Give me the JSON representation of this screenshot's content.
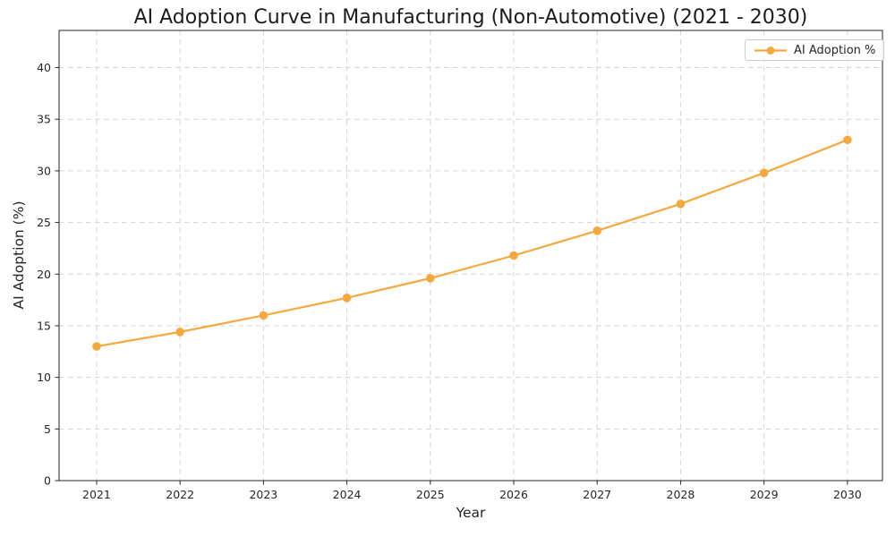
{
  "figure": {
    "background": "#ffffff"
  },
  "chart_data": {
    "type": "line",
    "title": "AI Adoption Curve in Manufacturing (Non-Automotive) (2021 - 2030)",
    "xlabel": "Year",
    "ylabel": "AI Adoption (%)",
    "categories": [
      2021,
      2022,
      2023,
      2024,
      2025,
      2026,
      2027,
      2028,
      2029,
      2030
    ],
    "series": [
      {
        "name": "AI Adoption %",
        "values": [
          13.0,
          14.4,
          16.0,
          17.7,
          19.6,
          21.8,
          24.2,
          26.8,
          29.8,
          33.0
        ],
        "color": "#F4A93E",
        "marker": "circle"
      }
    ],
    "xlim": [
      2020.55,
      2030.42
    ],
    "ylim": [
      0,
      43.6
    ],
    "yticks": [
      0,
      5,
      10,
      15,
      20,
      25,
      30,
      35,
      40
    ],
    "grid": {
      "visible": true,
      "style": "dashed",
      "color": "#d4d4d4"
    },
    "legend": {
      "position": "upper right",
      "entries": [
        "AI Adoption %"
      ]
    }
  },
  "colors": {
    "accent": "#F4A93E",
    "axis": "#262626",
    "grid": "#d4d4d4",
    "text": "#1c1c1c"
  }
}
